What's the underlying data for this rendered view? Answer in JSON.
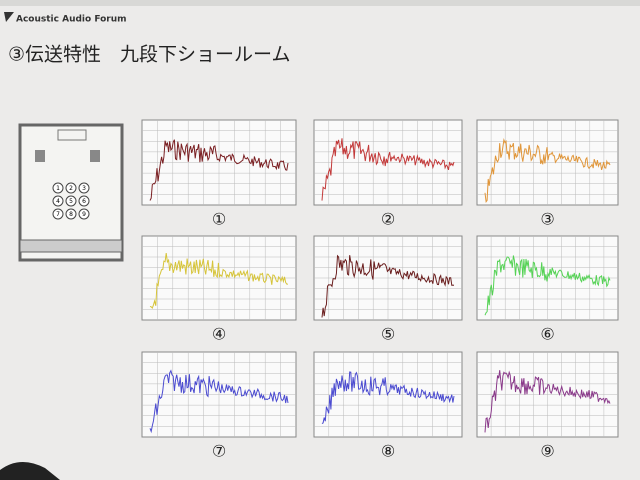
{
  "header": {
    "logo": "Acoustic Audio Forum",
    "title": "③伝送特性　九段下ショールーム"
  },
  "floorplan": {
    "seats": [
      "1",
      "2",
      "3",
      "4",
      "5",
      "6",
      "7",
      "8",
      "9"
    ]
  },
  "panels": [
    {
      "label": "①"
    },
    {
      "label": "②"
    },
    {
      "label": "③"
    },
    {
      "label": "④"
    },
    {
      "label": "⑤"
    },
    {
      "label": "⑥"
    },
    {
      "label": "⑦"
    },
    {
      "label": "⑧"
    },
    {
      "label": "⑨"
    }
  ]
}
